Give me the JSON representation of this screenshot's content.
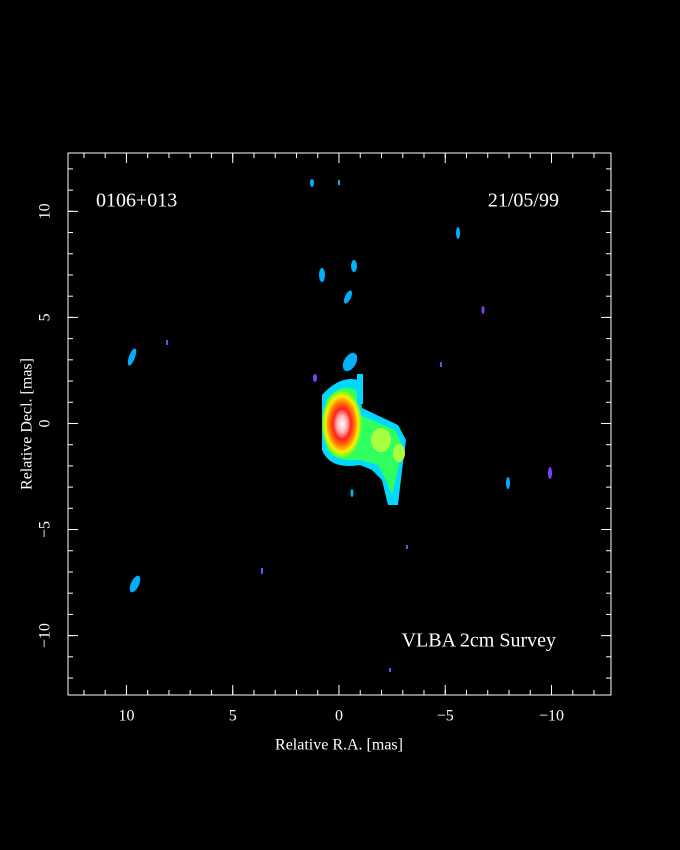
{
  "chart_data": {
    "type": "image",
    "source_label": "0106+013",
    "date_label": "21/05/99",
    "survey_label": "VLBA 2cm Survey",
    "x_label": "Relative R.A. [mas]",
    "y_label": "Relative Decl. [mas]",
    "xlim": [
      12.75,
      -12.8
    ],
    "ylim": [
      -12.8,
      12.75
    ],
    "xticks": [
      10,
      5,
      0,
      {
        "value": -5,
        "label": "−5"
      },
      {
        "value": -10,
        "label": "−10"
      }
    ],
    "yticks": [
      {
        "value": -10,
        "label": "−10"
      },
      {
        "value": -5,
        "label": "−5"
      },
      0,
      5,
      10
    ],
    "minor_ticks_per_major": 5
  }
}
